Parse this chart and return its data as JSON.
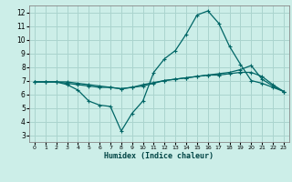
{
  "title": "",
  "xlabel": "Humidex (Indice chaleur)",
  "ylabel": "",
  "bg_color": "#cceee8",
  "grid_color": "#aad4ce",
  "line_color": "#006666",
  "xlim": [
    -0.5,
    23.5
  ],
  "ylim": [
    2.5,
    12.5
  ],
  "xticks": [
    0,
    1,
    2,
    3,
    4,
    5,
    6,
    7,
    8,
    9,
    10,
    11,
    12,
    13,
    14,
    15,
    16,
    17,
    18,
    19,
    20,
    21,
    22,
    23
  ],
  "yticks": [
    3,
    4,
    5,
    6,
    7,
    8,
    9,
    10,
    11,
    12
  ],
  "line1_x": [
    0,
    1,
    2,
    3,
    4,
    5,
    6,
    7,
    8,
    9,
    10,
    11,
    12,
    13,
    14,
    15,
    16,
    17,
    18,
    19,
    20,
    21,
    22,
    23
  ],
  "line1_y": [
    6.9,
    6.9,
    6.9,
    6.7,
    6.3,
    5.5,
    5.2,
    5.1,
    3.3,
    4.6,
    5.5,
    7.6,
    8.6,
    9.2,
    10.4,
    11.8,
    12.1,
    11.2,
    9.5,
    8.2,
    7.0,
    6.8,
    6.5,
    6.2
  ],
  "line2_x": [
    0,
    1,
    2,
    3,
    4,
    5,
    6,
    7,
    8,
    9,
    10,
    11,
    12,
    13,
    14,
    15,
    16,
    17,
    18,
    19,
    20,
    21,
    22,
    23
  ],
  "line2_y": [
    6.9,
    6.9,
    6.9,
    6.8,
    6.7,
    6.6,
    6.5,
    6.5,
    6.4,
    6.5,
    6.6,
    6.8,
    7.0,
    7.1,
    7.2,
    7.3,
    7.4,
    7.5,
    7.6,
    7.8,
    8.1,
    7.1,
    6.6,
    6.2
  ],
  "line3_x": [
    0,
    1,
    2,
    3,
    4,
    5,
    6,
    7,
    8,
    9,
    10,
    11,
    12,
    13,
    14,
    15,
    16,
    17,
    18,
    19,
    20,
    21,
    22,
    23
  ],
  "line3_y": [
    6.9,
    6.9,
    6.9,
    6.9,
    6.8,
    6.7,
    6.6,
    6.5,
    6.4,
    6.5,
    6.7,
    6.85,
    7.0,
    7.1,
    7.2,
    7.3,
    7.4,
    7.4,
    7.5,
    7.6,
    7.6,
    7.3,
    6.7,
    6.2
  ]
}
